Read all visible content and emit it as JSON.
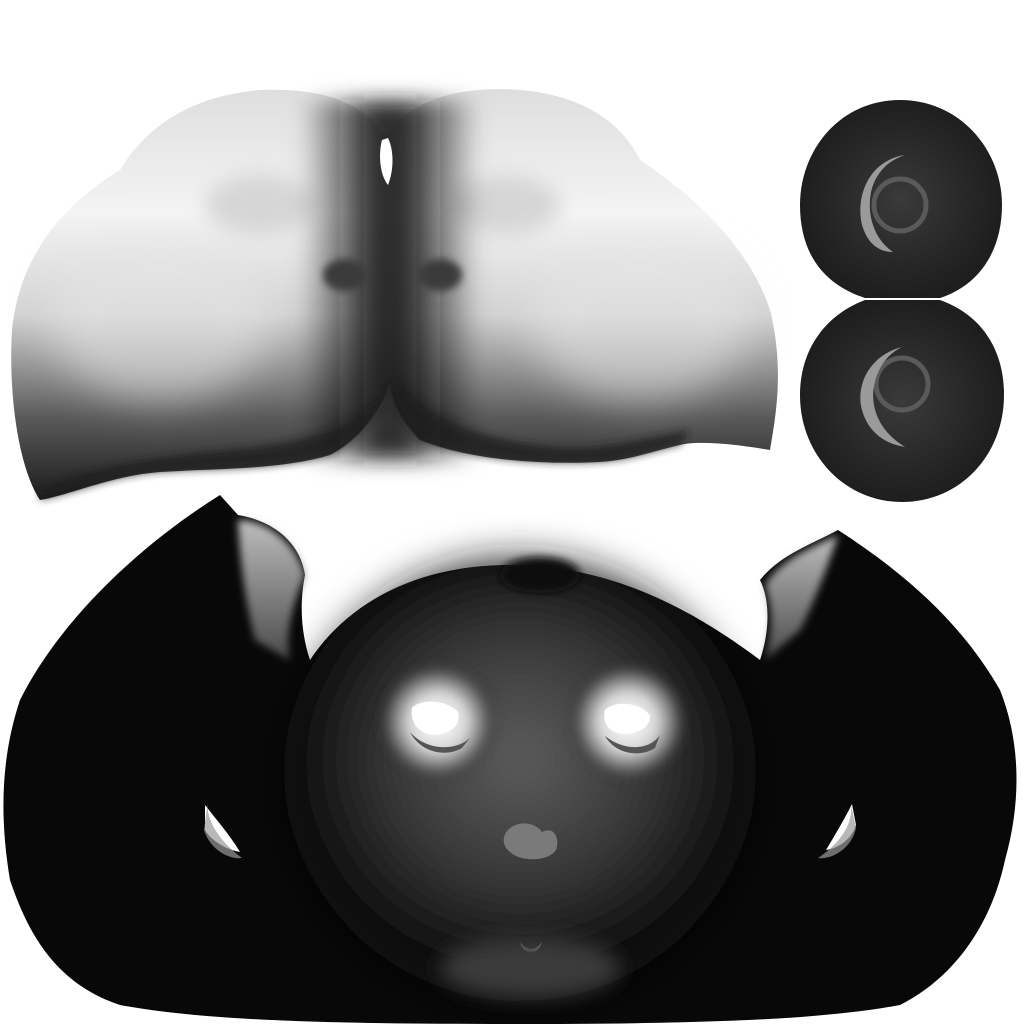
{
  "texture": {
    "kind": "uv-map-bake",
    "tone": "grayscale",
    "background": "#ffffff",
    "islands": [
      "top-head-island",
      "upper-eyeball-island",
      "lower-eyeball-island",
      "face-island"
    ]
  }
}
